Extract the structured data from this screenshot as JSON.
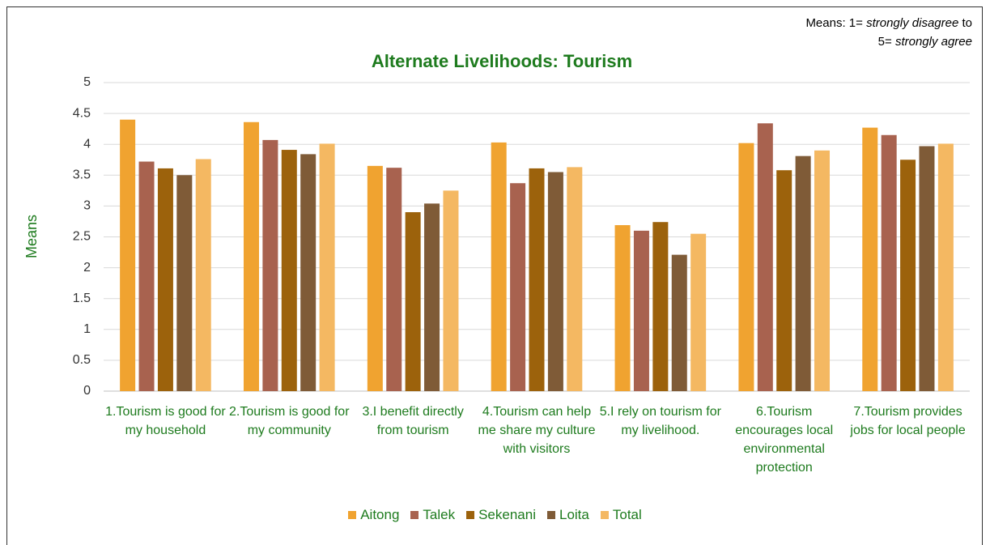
{
  "chart_data": {
    "type": "bar",
    "title": "Alternate Livelihoods: Tourism",
    "y_label": "Means",
    "annotation": [
      "Means: 1= ",
      "strongly disagree",
      " to",
      "5= ",
      "strongly agree"
    ],
    "categories": [
      "1.Tourism is good for my household",
      "2.Tourism is good for my community",
      "3.I benefit directly from tourism",
      "4.Tourism can help me share my culture with visitors",
      "5.I rely on tourism for my livelihood.",
      "6.Tourism encourages local environmental protection",
      "7.Tourism provides jobs for local people"
    ],
    "series": [
      {
        "name": "Aitong",
        "color": "#f0a330",
        "values": [
          4.4,
          4.36,
          3.65,
          4.03,
          2.69,
          4.02,
          4.27
        ]
      },
      {
        "name": "Talek",
        "color": "#a8624f",
        "values": [
          3.72,
          4.07,
          3.62,
          3.37,
          2.6,
          4.34,
          4.15
        ]
      },
      {
        "name": "Sekenani",
        "color": "#9c620c",
        "values": [
          3.61,
          3.91,
          2.9,
          3.61,
          2.74,
          3.58,
          3.75
        ]
      },
      {
        "name": "Loita",
        "color": "#7f5b37",
        "values": [
          3.5,
          3.84,
          3.04,
          3.55,
          2.21,
          3.81,
          3.97
        ]
      },
      {
        "name": "Total",
        "color": "#f4b862",
        "values": [
          3.76,
          4.01,
          3.25,
          3.63,
          2.55,
          3.9,
          4.01
        ]
      }
    ],
    "ylim": [
      0,
      5
    ],
    "yticks": [
      0,
      0.5,
      1,
      1.5,
      2,
      2.5,
      3,
      3.5,
      4,
      4.5,
      5
    ],
    "grid": true,
    "legend": "bottom"
  }
}
